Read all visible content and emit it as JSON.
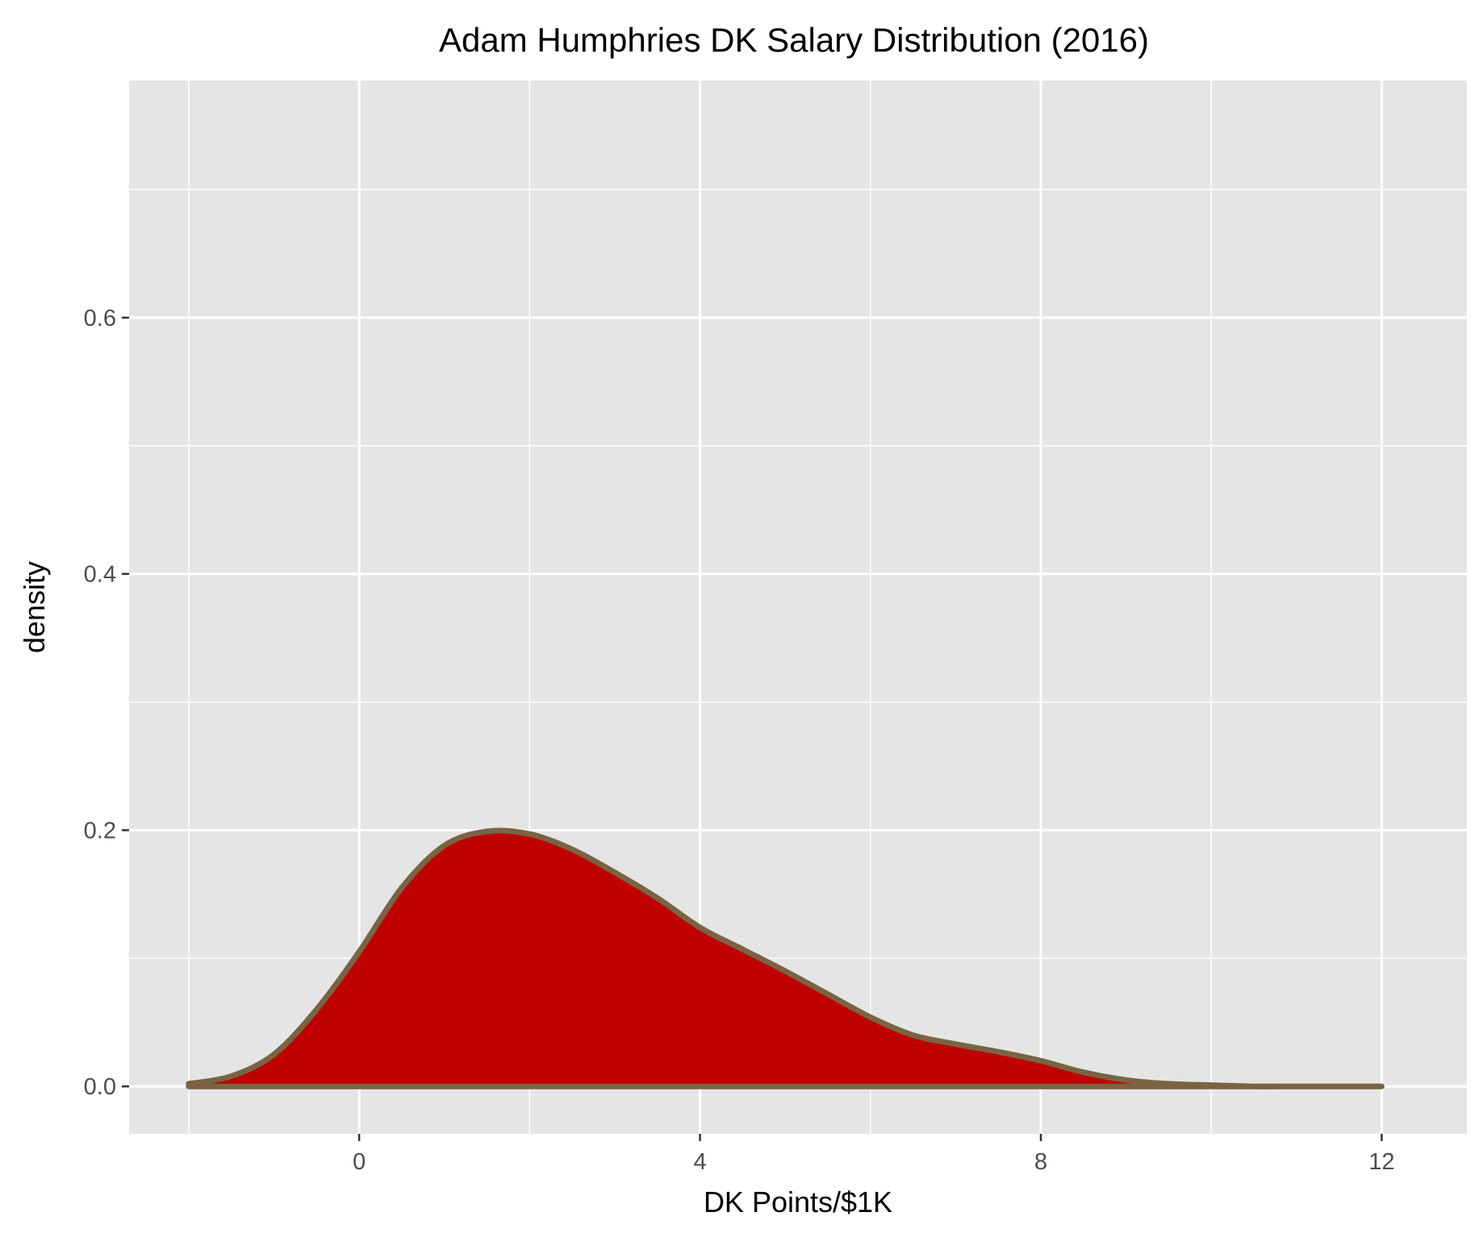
{
  "chart_data": {
    "type": "area",
    "title": "Adam Humphries DK Salary Distribution (2016)",
    "xlabel": "DK Points/$1K",
    "ylabel": "density",
    "xlim": [
      -2.7,
      13.0
    ],
    "ylim": [
      -0.037,
      0.785
    ],
    "x_ticks": [
      0,
      4,
      8,
      12
    ],
    "x_tick_labels": [
      "0",
      "4",
      "8",
      "12"
    ],
    "y_ticks": [
      0.0,
      0.2,
      0.4,
      0.6
    ],
    "y_tick_labels": [
      "0.0",
      "0.2",
      "0.4",
      "0.6"
    ],
    "grid": true,
    "fill_color": "#bf0000",
    "line_color": "#7a6343",
    "panel_color": "#e5e5e5",
    "series": [
      {
        "x": [
          -2.0,
          -1.5,
          -1.0,
          -0.5,
          0.0,
          0.5,
          1.0,
          1.5,
          2.0,
          2.5,
          3.0,
          3.5,
          4.0,
          4.5,
          5.0,
          5.5,
          6.0,
          6.5,
          7.0,
          7.5,
          8.0,
          8.5,
          9.0,
          9.5,
          10.0,
          10.5,
          11.0,
          11.5,
          12.0
        ],
        "y": [
          0.002,
          0.008,
          0.025,
          0.06,
          0.105,
          0.155,
          0.188,
          0.199,
          0.197,
          0.185,
          0.167,
          0.147,
          0.124,
          0.107,
          0.09,
          0.072,
          0.054,
          0.04,
          0.033,
          0.027,
          0.02,
          0.011,
          0.005,
          0.002,
          0.001,
          0.0,
          0.0,
          0.0,
          0.0
        ]
      }
    ]
  }
}
